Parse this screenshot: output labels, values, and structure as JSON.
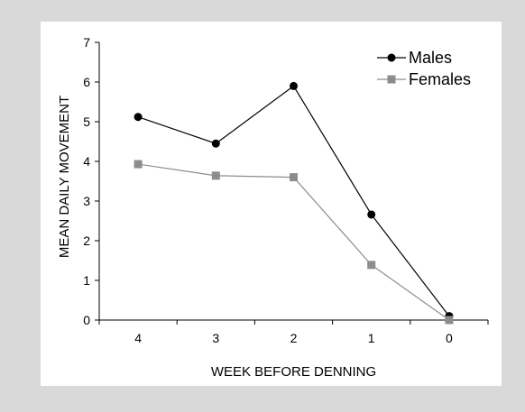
{
  "chart_data": {
    "type": "line",
    "title": "",
    "xlabel": "WEEK BEFORE DENNING",
    "ylabel": "MEAN DAILY MOVEMENT",
    "categories": [
      "4",
      "3",
      "2",
      "1",
      "0"
    ],
    "ylim": [
      0,
      7
    ],
    "yticks": [
      0,
      1,
      2,
      3,
      4,
      5,
      6,
      7
    ],
    "grid": false,
    "legend_position": "top-right",
    "series": [
      {
        "name": "Males",
        "values": [
          5.12,
          4.45,
          5.9,
          2.66,
          0.1
        ],
        "color": "#000000",
        "marker": "circle"
      },
      {
        "name": "Females",
        "values": [
          3.93,
          3.64,
          3.6,
          1.39,
          0.0
        ],
        "color": "#8c8c8c",
        "marker": "square"
      }
    ]
  }
}
